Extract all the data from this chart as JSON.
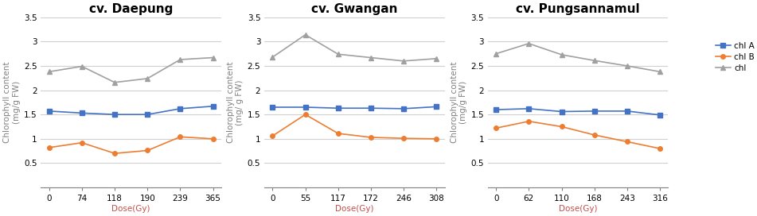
{
  "panels": [
    {
      "title": "cv. Daepung",
      "x_labels": [
        "0",
        "74",
        "118",
        "190",
        "239",
        "365"
      ],
      "x_values": [
        0,
        74,
        118,
        190,
        239,
        365
      ],
      "chl_A": [
        1.57,
        1.53,
        1.5,
        1.5,
        1.62,
        1.67
      ],
      "chl_B": [
        0.82,
        0.92,
        0.7,
        0.76,
        1.04,
        1.0
      ],
      "chl": [
        2.38,
        2.49,
        2.16,
        2.24,
        2.63,
        2.67
      ]
    },
    {
      "title": "cv. Gwangan",
      "x_labels": [
        "0",
        "55",
        "117",
        "172",
        "246",
        "308"
      ],
      "x_values": [
        0,
        55,
        117,
        172,
        246,
        308
      ],
      "chl_A": [
        1.65,
        1.65,
        1.63,
        1.63,
        1.62,
        1.66
      ],
      "chl_B": [
        1.06,
        1.5,
        1.11,
        1.03,
        1.01,
        1.0
      ],
      "chl": [
        2.68,
        3.14,
        2.74,
        2.67,
        2.6,
        2.65
      ]
    },
    {
      "title": "cv. Pungsannamul",
      "x_labels": [
        "0",
        "62",
        "110",
        "168",
        "243",
        "316"
      ],
      "x_values": [
        0,
        62,
        110,
        168,
        243,
        316
      ],
      "chl_A": [
        1.6,
        1.62,
        1.56,
        1.57,
        1.57,
        1.49
      ],
      "chl_B": [
        1.22,
        1.36,
        1.25,
        1.08,
        0.94,
        0.8
      ],
      "chl": [
        2.75,
        2.96,
        2.73,
        2.61,
        2.5,
        2.38
      ]
    }
  ],
  "ylabel_line1": "Chlorophyll content",
  "ylabel_line2": "(mg/g FW)",
  "ylabel_line2_gwangan": "(mg/ g FW)",
  "xlabel": "Dose(Gy)",
  "ylim": [
    0,
    3.5
  ],
  "yticks": [
    0,
    0.5,
    1.0,
    1.5,
    2.0,
    2.5,
    3.0,
    3.5
  ],
  "ytick_labels": [
    "",
    "0.5",
    "1",
    "1.5",
    "2",
    "2.5",
    "3",
    "3.5"
  ],
  "color_A": "#4472C4",
  "color_B": "#ED7D31",
  "color_chl": "#A0A0A0",
  "legend_labels": [
    "chl A",
    "chl B",
    "chl"
  ],
  "title_fontsize": 11,
  "axis_label_fontsize": 7.5,
  "tick_fontsize": 7.5,
  "xlabel_color": "#C0504D",
  "ylabel_color": "#808080",
  "grid_color": "#D0D0D0",
  "marker_size": 4,
  "line_width": 1.2
}
